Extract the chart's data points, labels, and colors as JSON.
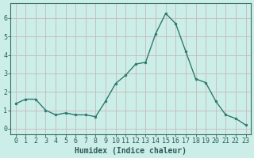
{
  "x": [
    0,
    1,
    2,
    3,
    4,
    5,
    6,
    7,
    8,
    9,
    10,
    11,
    12,
    13,
    14,
    15,
    16,
    17,
    18,
    19,
    20,
    21,
    22,
    23
  ],
  "y": [
    1.35,
    1.6,
    1.6,
    1.0,
    0.75,
    0.85,
    0.75,
    0.75,
    0.65,
    1.5,
    2.45,
    2.9,
    3.5,
    3.6,
    5.15,
    6.25,
    5.7,
    4.2,
    2.7,
    2.5,
    1.5,
    0.75,
    0.55,
    0.2
  ],
  "xlabel": "Humidex (Indice chaleur)",
  "xlim": [
    -0.5,
    23.5
  ],
  "ylim": [
    -0.3,
    6.8
  ],
  "yticks": [
    0,
    1,
    2,
    3,
    4,
    5,
    6
  ],
  "xticks": [
    0,
    1,
    2,
    3,
    4,
    5,
    6,
    7,
    8,
    9,
    10,
    11,
    12,
    13,
    14,
    15,
    16,
    17,
    18,
    19,
    20,
    21,
    22,
    23
  ],
  "line_color": "#2d7a6e",
  "marker": "o",
  "marker_size": 2.0,
  "bg_color": "#cceee8",
  "grid_color": "#c8b8b8",
  "axes_color": "#3a6b65",
  "label_color": "#2d5a54",
  "tick_label_color": "#2d5a54",
  "xlabel_fontsize": 7.0,
  "tick_fontsize": 6.0,
  "line_width": 1.0
}
